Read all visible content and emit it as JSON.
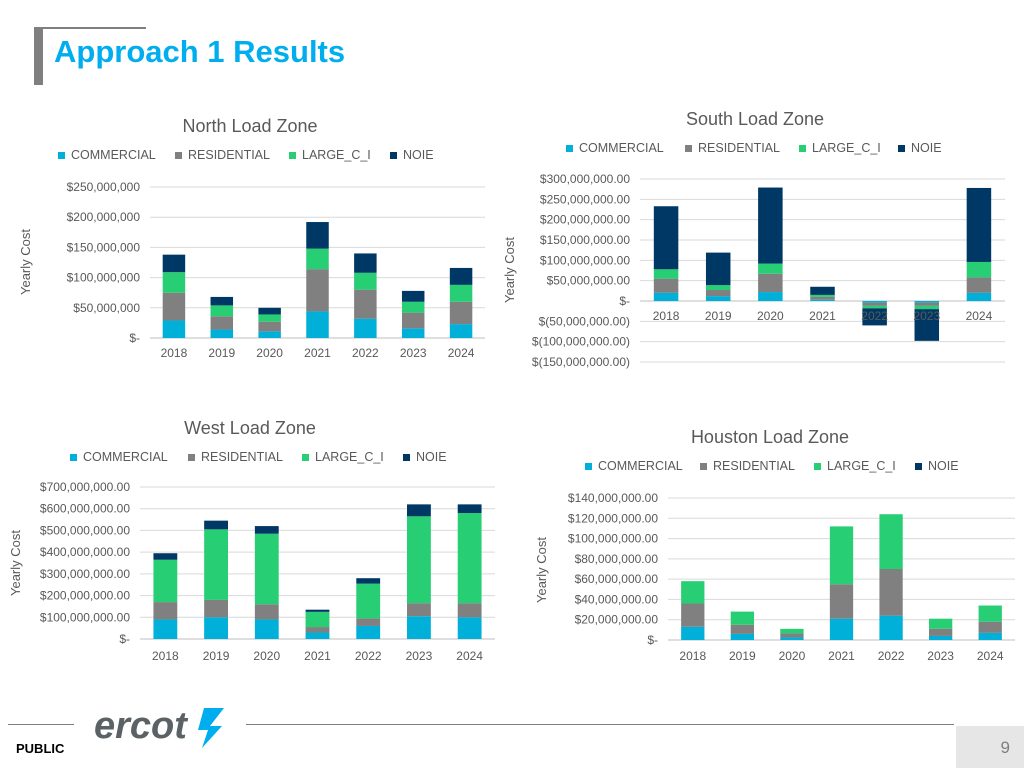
{
  "page": {
    "title": "Approach 1 Results",
    "footer_label": "PUBLIC",
    "page_number": "9",
    "logo_text": "ercot"
  },
  "colors": {
    "COMMERCIAL": "#00b0d8",
    "RESIDENTIAL": "#808080",
    "LARGE_C_I": "#27ce74",
    "NOIE": "#003865"
  },
  "chart_data": [
    {
      "type": "bar",
      "stacked": true,
      "title": "North Load Zone",
      "ylabel": "Yearly Cost",
      "xlabel": "",
      "categories": [
        "2018",
        "2019",
        "2020",
        "2021",
        "2022",
        "2023",
        "2024"
      ],
      "ylim": [
        0,
        250000000
      ],
      "yticks": [
        0,
        50000000,
        100000000,
        150000000,
        200000000,
        250000000
      ],
      "ytick_labels": [
        "$-",
        "$50,000,000",
        "$100,000,000",
        "$150,000,000",
        "$200,000,000",
        "$250,000,000"
      ],
      "grid": true,
      "legend": "top",
      "series": [
        {
          "name": "COMMERCIAL",
          "values": [
            29000000,
            14000000,
            11000000,
            44000000,
            32000000,
            16000000,
            23000000
          ]
        },
        {
          "name": "RESIDENTIAL",
          "values": [
            46000000,
            22000000,
            16000000,
            70000000,
            48000000,
            26000000,
            37000000
          ]
        },
        {
          "name": "LARGE_C_I",
          "values": [
            34000000,
            18000000,
            12000000,
            34000000,
            28000000,
            18000000,
            28000000
          ]
        },
        {
          "name": "NOIE",
          "values": [
            29000000,
            14000000,
            11000000,
            44000000,
            32000000,
            18000000,
            28000000
          ]
        }
      ]
    },
    {
      "type": "bar",
      "stacked": true,
      "title": "South Load Zone",
      "ylabel": "Yearly Cost",
      "xlabel": "",
      "categories": [
        "2018",
        "2019",
        "2020",
        "2021",
        "2022",
        "2023",
        "2024"
      ],
      "ylim": [
        -150000000,
        300000000
      ],
      "yticks": [
        -150000000,
        -100000000,
        -50000000,
        0,
        50000000,
        100000000,
        150000000,
        200000000,
        250000000,
        300000000
      ],
      "ytick_labels": [
        "$(150,000,000.00)",
        "$(100,000,000.00)",
        "$(50,000,000.00)",
        "$-",
        "$50,000,000.00",
        "$100,000,000.00",
        "$150,000,000.00",
        "$200,000,000.00",
        "$250,000,000.00",
        "$300,000,000.00"
      ],
      "grid": true,
      "legend": "top",
      "series": [
        {
          "name": "COMMERCIAL",
          "values": [
            20000000,
            12000000,
            22000000,
            3000000,
            -4000000,
            -4000000,
            20000000
          ]
        },
        {
          "name": "RESIDENTIAL",
          "values": [
            35000000,
            15000000,
            45000000,
            7000000,
            -8000000,
            -8000000,
            38000000
          ]
        },
        {
          "name": "LARGE_C_I",
          "values": [
            23000000,
            12000000,
            25000000,
            5000000,
            -6000000,
            -8000000,
            38000000
          ]
        },
        {
          "name": "NOIE",
          "values": [
            155000000,
            80000000,
            187000000,
            20000000,
            -42000000,
            -78000000,
            182000000
          ]
        }
      ]
    },
    {
      "type": "bar",
      "stacked": true,
      "title": "West Load Zone",
      "ylabel": "Yearly Cost",
      "xlabel": "",
      "categories": [
        "2018",
        "2019",
        "2020",
        "2021",
        "2022",
        "2023",
        "2024"
      ],
      "ylim": [
        0,
        700000000
      ],
      "yticks": [
        0,
        100000000,
        200000000,
        300000000,
        400000000,
        500000000,
        600000000,
        700000000
      ],
      "ytick_labels": [
        "$-",
        "$100,000,000.00",
        "$200,000,000.00",
        "$300,000,000.00",
        "$400,000,000.00",
        "$500,000,000.00",
        "$600,000,000.00",
        "$700,000,000.00"
      ],
      "grid": true,
      "legend": "top",
      "series": [
        {
          "name": "COMMERCIAL",
          "values": [
            90000000,
            100000000,
            90000000,
            30000000,
            60000000,
            105000000,
            100000000
          ]
        },
        {
          "name": "RESIDENTIAL",
          "values": [
            80000000,
            80000000,
            70000000,
            25000000,
            35000000,
            60000000,
            65000000
          ]
        },
        {
          "name": "LARGE_C_I",
          "values": [
            195000000,
            325000000,
            325000000,
            70000000,
            160000000,
            400000000,
            415000000
          ]
        },
        {
          "name": "NOIE",
          "values": [
            30000000,
            40000000,
            35000000,
            10000000,
            25000000,
            55000000,
            40000000
          ]
        }
      ]
    },
    {
      "type": "bar",
      "stacked": true,
      "title": "Houston Load Zone",
      "ylabel": "Yearly Cost",
      "xlabel": "",
      "categories": [
        "2018",
        "2019",
        "2020",
        "2021",
        "2022",
        "2023",
        "2024"
      ],
      "ylim": [
        0,
        140000000
      ],
      "yticks": [
        0,
        20000000,
        40000000,
        60000000,
        80000000,
        100000000,
        120000000,
        140000000
      ],
      "ytick_labels": [
        "$-",
        "$20,000,000.00",
        "$40,000,000.00",
        "$60,000,000.00",
        "$80,000,000.00",
        "$100,000,000.00",
        "$120,000,000.00",
        "$140,000,000.00"
      ],
      "grid": true,
      "legend": "top",
      "series": [
        {
          "name": "COMMERCIAL",
          "values": [
            13000000,
            6000000,
            2500000,
            21000000,
            24000000,
            4000000,
            7000000
          ]
        },
        {
          "name": "RESIDENTIAL",
          "values": [
            23000000,
            9000000,
            4000000,
            34000000,
            46000000,
            7000000,
            11000000
          ]
        },
        {
          "name": "LARGE_C_I",
          "values": [
            22000000,
            13000000,
            4500000,
            57000000,
            54000000,
            10000000,
            16000000
          ]
        },
        {
          "name": "NOIE",
          "values": [
            0,
            0,
            0,
            0,
            0,
            0,
            0
          ]
        }
      ]
    }
  ]
}
